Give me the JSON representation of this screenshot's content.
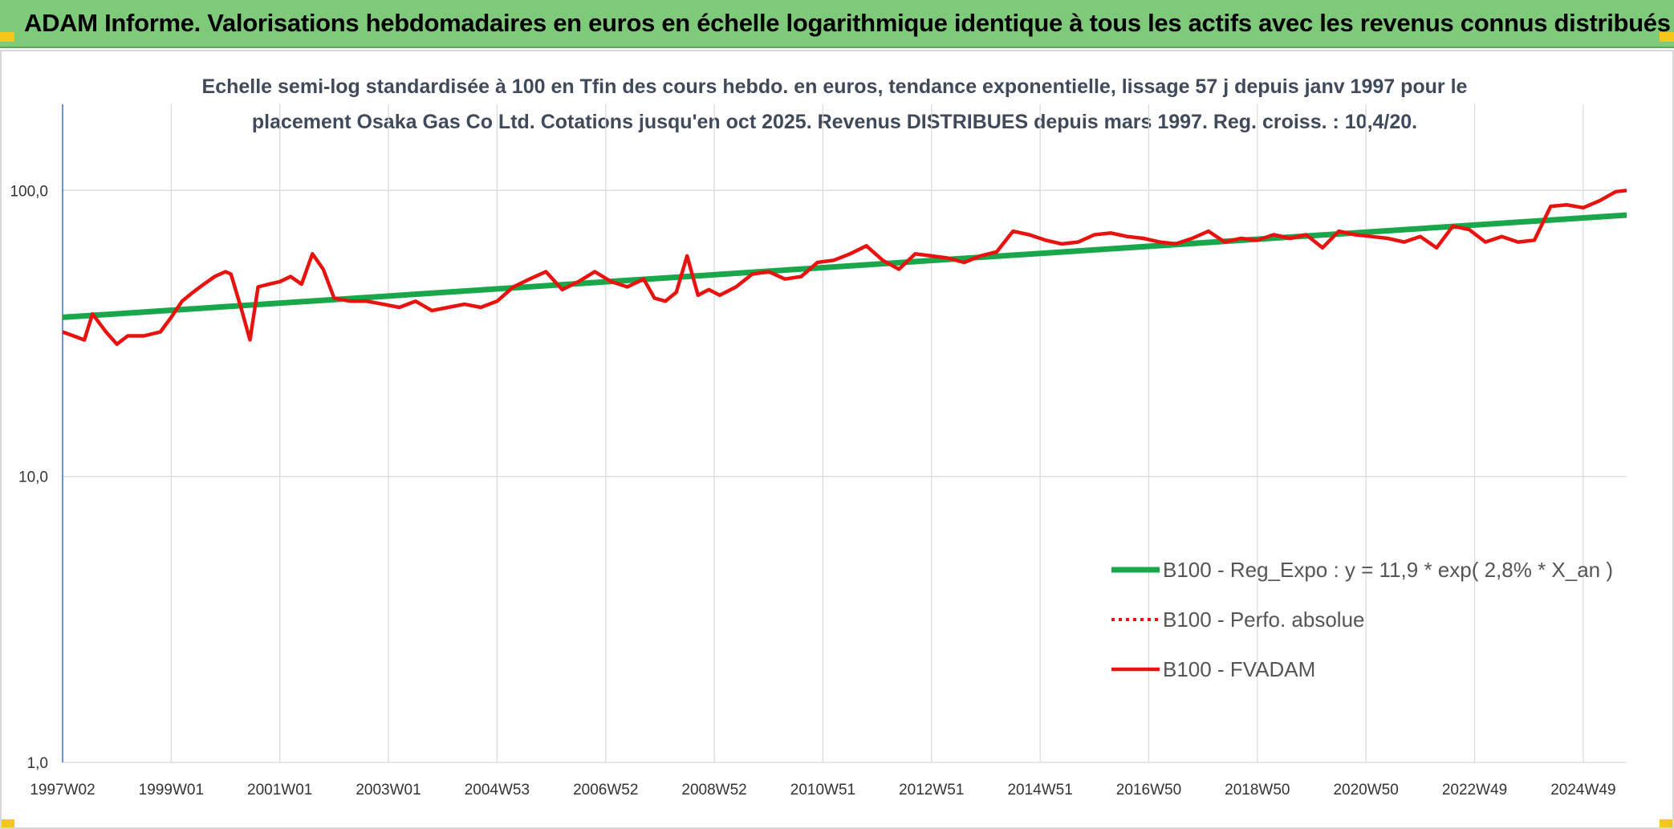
{
  "banner": {
    "title": "ADAM Informe. Valorisations hebdomadaires en euros en échelle logarithmique identique à tous les actifs avec les revenus connus distribués"
  },
  "colors": {
    "banner_bg": "#7fc97a",
    "trend": "#1aa64a",
    "fvadam": "#e8130f",
    "perfo": "#e8130f",
    "grid": "#d9d9d9",
    "corner": "#f5c518"
  },
  "chart_data": {
    "type": "line",
    "title": "Echelle semi-log standardisée à 100 en Tfin des cours hebdo. en euros, tendance exponentielle, lissage 57 j depuis janv 1997 pour le placement Osaka Gas Co Ltd. Cotations jusqu'en oct 2025. Revenus DISTRIBUES depuis mars 1997. Reg. croiss. : 10,4/20.",
    "title_lines": [
      "Echelle semi-log standardisée à 100 en Tfin des cours hebdo. en euros, tendance exponentielle, lissage 57 j depuis janv 1997 pour le",
      "placement Osaka Gas Co Ltd. Cotations jusqu'en oct 2025. Revenus DISTRIBUES depuis mars 1997. Reg. croiss. : 10,4/20."
    ],
    "y_scale": "log",
    "ylim": [
      1,
      200
    ],
    "xlim": [
      1997.0,
      2025.8
    ],
    "grid": true,
    "legend_position": "bottom-right",
    "y_ticks": [
      {
        "value": 1,
        "label": "1,0"
      },
      {
        "value": 10,
        "label": "10,0"
      },
      {
        "value": 100,
        "label": "100,0"
      }
    ],
    "x_ticks": [
      {
        "value": 1997.0,
        "label": "1997W02"
      },
      {
        "value": 1999.0,
        "label": "1999W01"
      },
      {
        "value": 2001.0,
        "label": "2001W01"
      },
      {
        "value": 2003.0,
        "label": "2003W01"
      },
      {
        "value": 2005.0,
        "label": "2004W53"
      },
      {
        "value": 2007.0,
        "label": "2006W52"
      },
      {
        "value": 2009.0,
        "label": "2008W52"
      },
      {
        "value": 2011.0,
        "label": "2010W51"
      },
      {
        "value": 2013.0,
        "label": "2012W51"
      },
      {
        "value": 2015.0,
        "label": "2014W51"
      },
      {
        "value": 2017.0,
        "label": "2016W50"
      },
      {
        "value": 2019.0,
        "label": "2018W50"
      },
      {
        "value": 2021.0,
        "label": "2020W50"
      },
      {
        "value": 2023.0,
        "label": "2022W49"
      },
      {
        "value": 2025.0,
        "label": "2024W49"
      }
    ],
    "series": [
      {
        "name": "B100 - Reg_Expo : y = 11,9 * exp( 2,8% *  X_an )",
        "style": "solid-thick",
        "x": [
          1997.0,
          2025.8
        ],
        "y": [
          36,
          82
        ]
      },
      {
        "name": "B100 - Perfo. absolue",
        "style": "dotted",
        "x": [],
        "y": []
      },
      {
        "name": "B100 - FVADAM",
        "style": "solid",
        "x": [
          1997.0,
          1997.2,
          1997.4,
          1997.55,
          1997.8,
          1998.0,
          1998.2,
          1998.5,
          1998.8,
          1999.0,
          1999.2,
          1999.4,
          1999.6,
          1999.8,
          2000.0,
          2000.1,
          2000.3,
          2000.45,
          2000.6,
          2000.8,
          2001.0,
          2001.2,
          2001.4,
          2001.6,
          2001.8,
          2002.0,
          2002.3,
          2002.6,
          2002.9,
          2003.2,
          2003.5,
          2003.8,
          2004.1,
          2004.4,
          2004.7,
          2005.0,
          2005.3,
          2005.6,
          2005.9,
          2006.2,
          2006.5,
          2006.8,
          2007.1,
          2007.4,
          2007.7,
          2007.9,
          2008.1,
          2008.3,
          2008.5,
          2008.7,
          2008.9,
          2009.1,
          2009.4,
          2009.7,
          2010.0,
          2010.3,
          2010.6,
          2010.9,
          2011.2,
          2011.5,
          2011.8,
          2012.1,
          2012.4,
          2012.7,
          2013.0,
          2013.3,
          2013.6,
          2013.9,
          2014.2,
          2014.5,
          2014.8,
          2015.1,
          2015.4,
          2015.7,
          2016.0,
          2016.3,
          2016.6,
          2016.9,
          2017.2,
          2017.5,
          2017.8,
          2018.1,
          2018.4,
          2018.7,
          2019.0,
          2019.3,
          2019.6,
          2019.9,
          2020.2,
          2020.5,
          2020.8,
          2021.1,
          2021.4,
          2021.7,
          2022.0,
          2022.3,
          2022.6,
          2022.9,
          2023.2,
          2023.5,
          2023.8,
          2024.1,
          2024.4,
          2024.7,
          2025.0,
          2025.3,
          2025.6,
          2025.8
        ],
        "y": [
          32,
          31,
          30,
          37,
          32,
          29,
          31,
          31,
          32,
          36,
          41,
          44,
          47,
          50,
          52,
          51,
          38,
          30,
          46,
          47,
          48,
          50,
          47,
          60,
          53,
          42,
          41,
          41,
          40,
          39,
          41,
          38,
          39,
          40,
          39,
          41,
          46,
          49,
          52,
          45,
          48,
          52,
          48,
          46,
          49,
          42,
          41,
          44,
          59,
          43,
          45,
          43,
          46,
          51,
          52,
          49,
          50,
          56,
          57,
          60,
          64,
          57,
          53,
          60,
          59,
          58,
          56,
          59,
          61,
          72,
          70,
          67,
          65,
          66,
          70,
          71,
          69,
          68,
          66,
          65,
          68,
          72,
          66,
          68,
          67,
          70,
          68,
          70,
          63,
          72,
          70,
          69,
          68,
          66,
          69,
          63,
          75,
          73,
          66,
          69,
          66,
          67,
          88,
          89,
          87,
          92,
          99,
          100
        ]
      }
    ]
  }
}
